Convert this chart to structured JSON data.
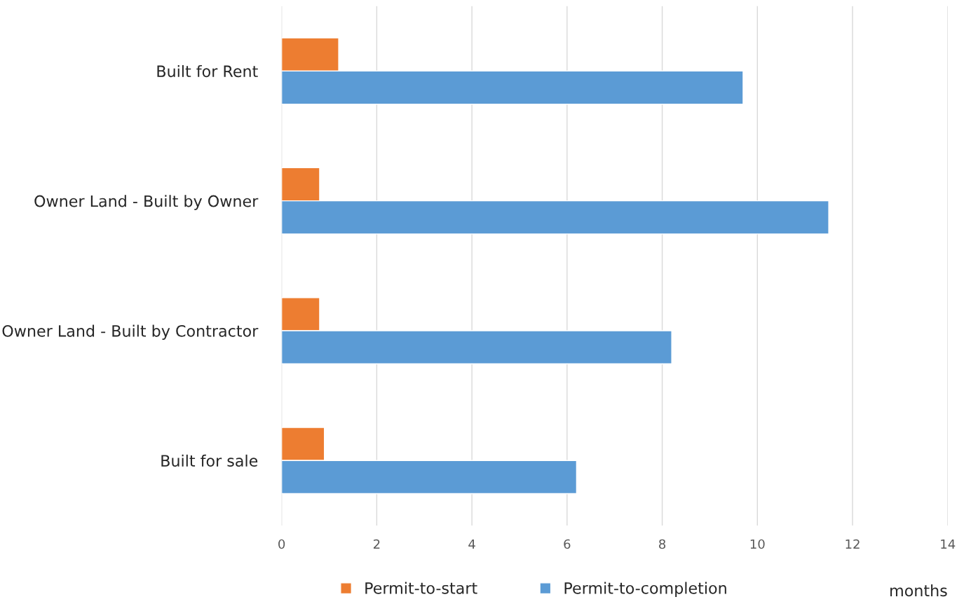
{
  "chart_data": {
    "type": "bar",
    "orientation": "horizontal",
    "categories": [
      "Built for Rent",
      "Owner Land - Built by Owner",
      "Owner Land - Built by Contractor",
      "Built for sale"
    ],
    "series": [
      {
        "name": "Permit-to-start",
        "color": "#ed7d31",
        "values": [
          1.2,
          0.8,
          0.8,
          0.9
        ]
      },
      {
        "name": "Permit-to-completion",
        "color": "#5b9bd5",
        "values": [
          9.7,
          11.5,
          8.2,
          6.2
        ]
      }
    ],
    "xlabel": "months",
    "xlim": [
      0,
      14
    ],
    "xticks": [
      0,
      2,
      4,
      6,
      8,
      10,
      12,
      14
    ],
    "grid": "x",
    "legend": "bottom"
  }
}
